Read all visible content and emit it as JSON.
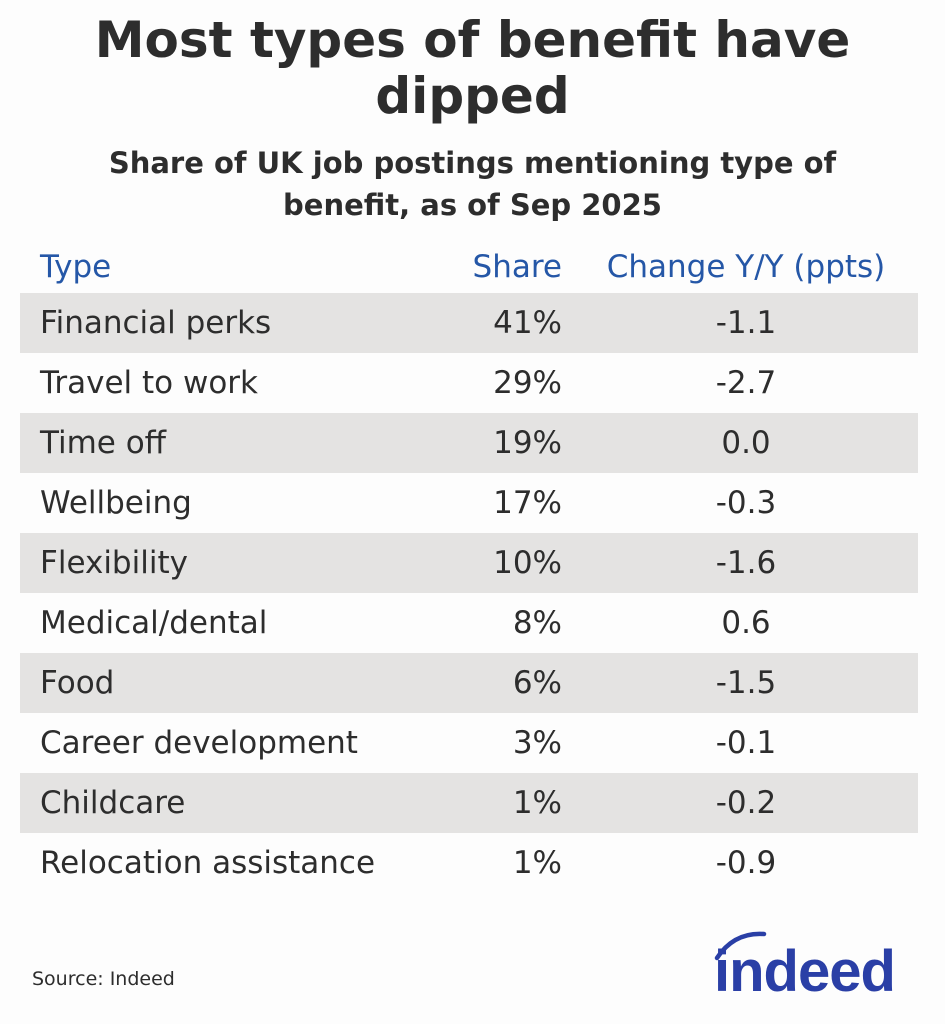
{
  "chart_data": {
    "type": "table",
    "title": "Most types of benefit have dipped",
    "subtitle": "Share of UK job postings mentioning type of benefit, as of Sep 2025",
    "columns": [
      "Type",
      "Share",
      "Change Y/Y (ppts)"
    ],
    "rows": [
      {
        "type": "Financial perks",
        "share": "41%",
        "change": "-1.1"
      },
      {
        "type": "Travel to work",
        "share": "29%",
        "change": "-2.7"
      },
      {
        "type": "Time off",
        "share": "19%",
        "change": "0.0"
      },
      {
        "type": "Wellbeing",
        "share": "17%",
        "change": "-0.3"
      },
      {
        "type": "Flexibility",
        "share": "10%",
        "change": "-1.6"
      },
      {
        "type": "Medical/dental",
        "share": "8%",
        "change": "0.6"
      },
      {
        "type": "Food",
        "share": "6%",
        "change": "-1.5"
      },
      {
        "type": "Career development",
        "share": "3%",
        "change": "-0.1"
      },
      {
        "type": "Childcare",
        "share": "1%",
        "change": "-0.2"
      },
      {
        "type": "Relocation assistance",
        "share": "1%",
        "change": "-0.9"
      }
    ],
    "source": "Source: Indeed"
  },
  "logo": {
    "text": "indeed",
    "color": "#2a3fa6"
  },
  "colors": {
    "header": "#2557a7",
    "shaded_row": "#e4e3e2",
    "text": "#2d2d2d"
  }
}
